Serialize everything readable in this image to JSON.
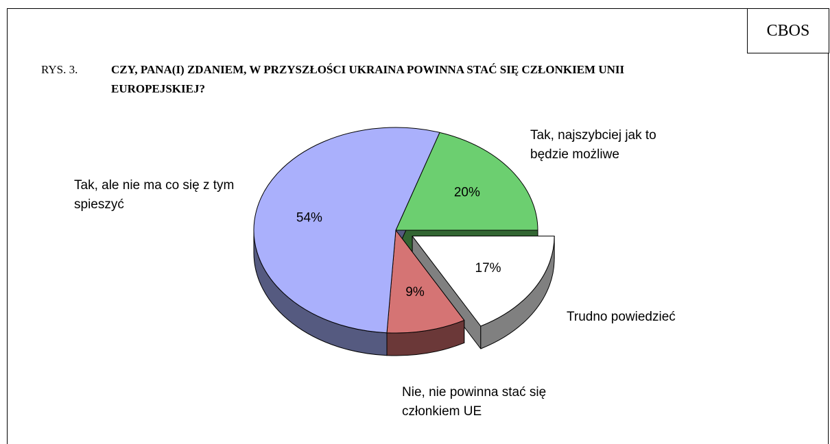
{
  "chart_data": {
    "type": "pie",
    "source": "CBOS",
    "figure_label": "RYS. 3.",
    "title": "CZY, PANA(I) ZDANIEM, W PRZYSZŁOŚCI UKRAINA POWINNA STAĆ SIĘ CZŁONKIEM UNII EUROPEJSKIEJ?",
    "categories": [
      "Tak, najszybciej jak to będzie możliwe",
      "Trudno powiedzieć",
      "Nie, nie powinna stać się członkiem UE",
      "Tak, ale nie ma co się z tym spieszyć"
    ],
    "values": [
      20,
      17,
      9,
      54
    ],
    "value_labels": [
      "20%",
      "17%",
      "9%",
      "54%"
    ],
    "colors": [
      "#6ccf70",
      "#ffffff",
      "#d57474",
      "#aab0fc"
    ],
    "side_colors": [
      "#336633",
      "#808080",
      "#6b3838",
      "#555a80"
    ],
    "exploded": [
      false,
      true,
      false,
      false
    ]
  }
}
